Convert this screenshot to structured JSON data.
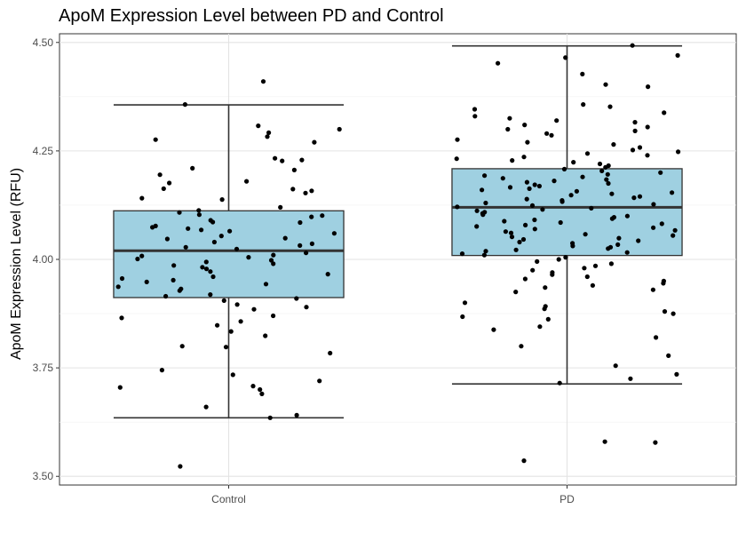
{
  "chart_data": {
    "type": "box",
    "title": "ApoM Expression Level between PD and Control",
    "xlabel": "",
    "ylabel": "ApoM Expression Level (RFU)",
    "categories": [
      "Control",
      "PD"
    ],
    "ylim": [
      3.48,
      4.52
    ],
    "yticks": [
      3.5,
      3.75,
      4.0,
      4.25,
      4.5
    ],
    "ytick_labels": [
      "3.50",
      "3.75",
      "4.00",
      "4.25",
      "4.50"
    ],
    "grid": true,
    "box_color": "#9fd0e1",
    "boxes": [
      {
        "category": "Control",
        "whisker_low": 3.635,
        "q1": 3.912,
        "median": 4.02,
        "q3": 4.112,
        "whisker_high": 4.356
      },
      {
        "category": "PD",
        "whisker_low": 3.713,
        "q1": 4.009,
        "median": 4.12,
        "q3": 4.209,
        "whisker_high": 4.492
      }
    ],
    "points": [
      {
        "category": "Control",
        "values": [
          4.41,
          4.357,
          4.308,
          4.3,
          4.292,
          4.283,
          4.276,
          4.27,
          4.233,
          4.229,
          4.227,
          4.21,
          4.206,
          4.195,
          4.18,
          4.176,
          4.163,
          4.162,
          4.158,
          4.153,
          4.141,
          4.138,
          4.12,
          4.113,
          4.108,
          4.103,
          4.101,
          4.098,
          4.09,
          4.086,
          4.085,
          4.077,
          4.074,
          4.071,
          4.068,
          4.065,
          4.06,
          4.054,
          4.049,
          4.047,
          4.04,
          4.036,
          4.032,
          4.028,
          4.024,
          4.015,
          4.01,
          4.008,
          4.005,
          4.001,
          3.998,
          3.994,
          3.99,
          3.986,
          3.982,
          3.978,
          3.972,
          3.966,
          3.96,
          3.956,
          3.952,
          3.948,
          3.943,
          3.937,
          3.932,
          3.928,
          3.919,
          3.915,
          3.91,
          3.905,
          3.896,
          3.89,
          3.885,
          3.87,
          3.865,
          3.857,
          3.848,
          3.834,
          3.824,
          3.8,
          3.798,
          3.784,
          3.745,
          3.734,
          3.72,
          3.708,
          3.705,
          3.7,
          3.69,
          3.66,
          3.641,
          3.635,
          3.523
        ]
      },
      {
        "category": "PD",
        "values": [
          4.493,
          4.47,
          4.465,
          4.452,
          4.427,
          4.403,
          4.398,
          4.357,
          4.352,
          4.346,
          4.338,
          4.33,
          4.325,
          4.32,
          4.316,
          4.31,
          4.305,
          4.3,
          4.296,
          4.29,
          4.286,
          4.276,
          4.27,
          4.265,
          4.258,
          4.252,
          4.248,
          4.244,
          4.24,
          4.236,
          4.232,
          4.228,
          4.224,
          4.22,
          4.216,
          4.212,
          4.208,
          4.204,
          4.2,
          4.196,
          4.193,
          4.19,
          4.187,
          4.184,
          4.181,
          4.178,
          4.175,
          4.172,
          4.169,
          4.166,
          4.163,
          4.16,
          4.157,
          4.154,
          4.151,
          4.148,
          4.145,
          4.142,
          4.139,
          4.136,
          4.133,
          4.13,
          4.127,
          4.124,
          4.121,
          4.118,
          4.115,
          4.112,
          4.109,
          4.106,
          4.103,
          4.1,
          4.097,
          4.094,
          4.091,
          4.088,
          4.085,
          4.082,
          4.079,
          4.076,
          4.073,
          4.07,
          4.067,
          4.064,
          4.061,
          4.058,
          4.055,
          4.052,
          4.049,
          4.046,
          4.043,
          4.04,
          4.037,
          4.034,
          4.031,
          4.028,
          4.025,
          4.022,
          4.019,
          4.016,
          4.013,
          4.01,
          4.005,
          4.0,
          3.995,
          3.99,
          3.985,
          3.98,
          3.975,
          3.97,
          3.965,
          3.96,
          3.955,
          3.95,
          3.945,
          3.94,
          3.935,
          3.93,
          3.925,
          3.9,
          3.892,
          3.886,
          3.88,
          3.875,
          3.868,
          3.862,
          3.845,
          3.838,
          3.82,
          3.8,
          3.778,
          3.755,
          3.735,
          3.725,
          3.715,
          3.58,
          3.578,
          3.536
        ]
      }
    ]
  }
}
